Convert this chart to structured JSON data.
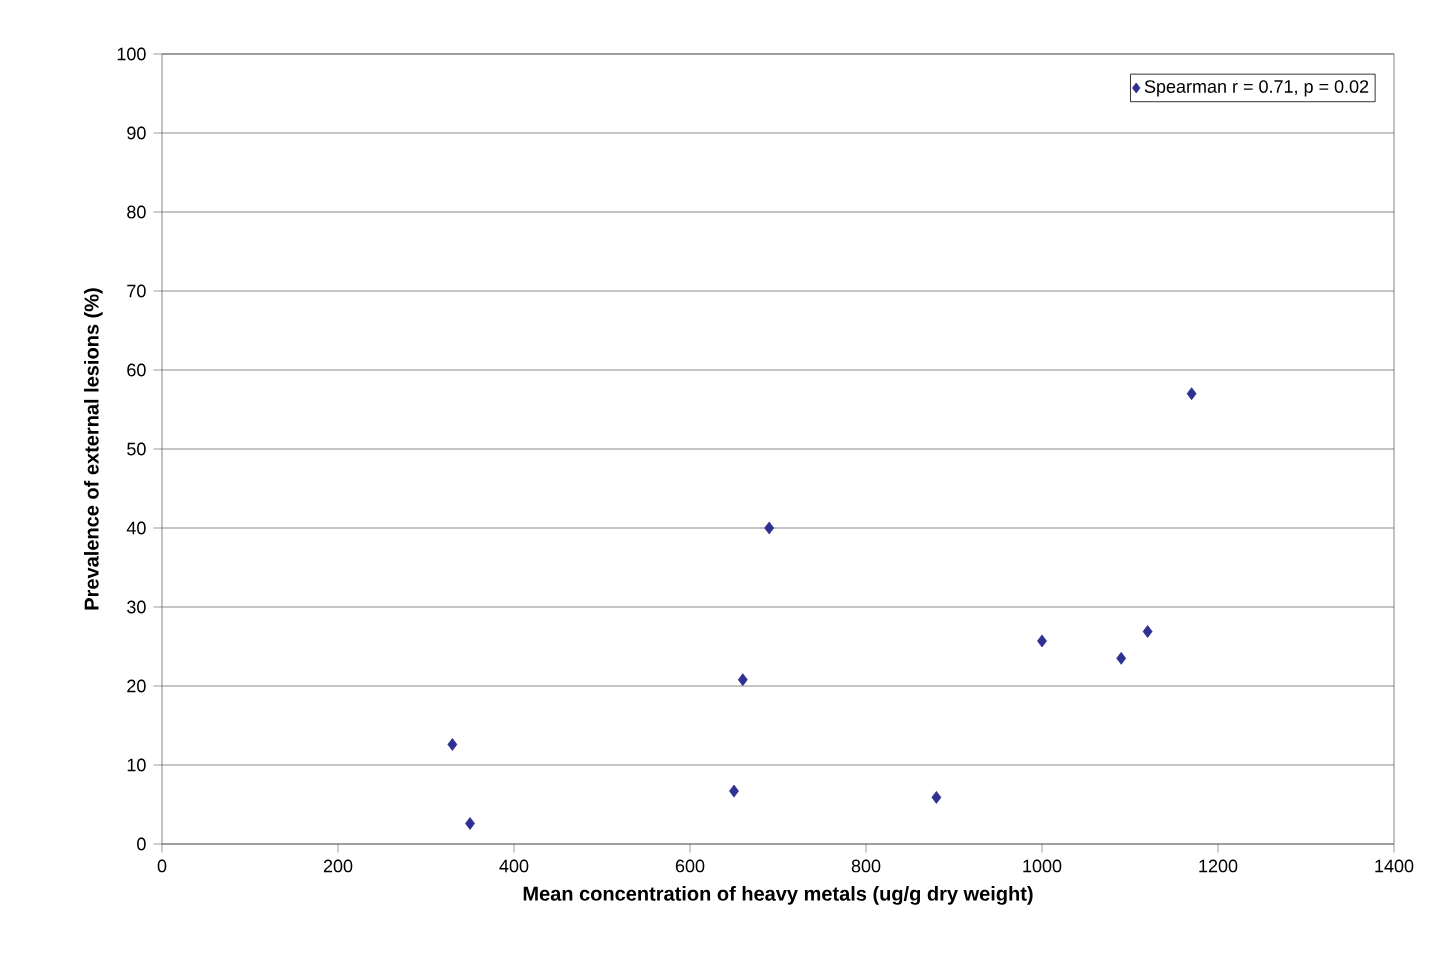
{
  "chart_data": {
    "type": "scatter",
    "xlabel": "Mean concentration of heavy metals (ug/g dry weight)",
    "ylabel": "Prevalence of external lesions (%)",
    "x": [
      330,
      350,
      650,
      660,
      690,
      880,
      1000,
      1090,
      1120,
      1170
    ],
    "series": [
      {
        "name": "Spearman r = 0.71, p = 0.02",
        "color": "#2e3192",
        "values": [
          12.6,
          2.6,
          6.7,
          20.8,
          40,
          5.9,
          25.7,
          23.5,
          26.9,
          57.0
        ]
      }
    ],
    "xlim": [
      0,
      1400
    ],
    "xticks": [
      0,
      200,
      400,
      600,
      800,
      1000,
      1200,
      1400
    ],
    "ylim": [
      0,
      100
    ],
    "yticks": [
      0,
      10,
      20,
      30,
      40,
      50,
      60,
      70,
      80,
      90,
      100
    ],
    "grid": "y",
    "legend": "top right",
    "marker": "diamond"
  }
}
